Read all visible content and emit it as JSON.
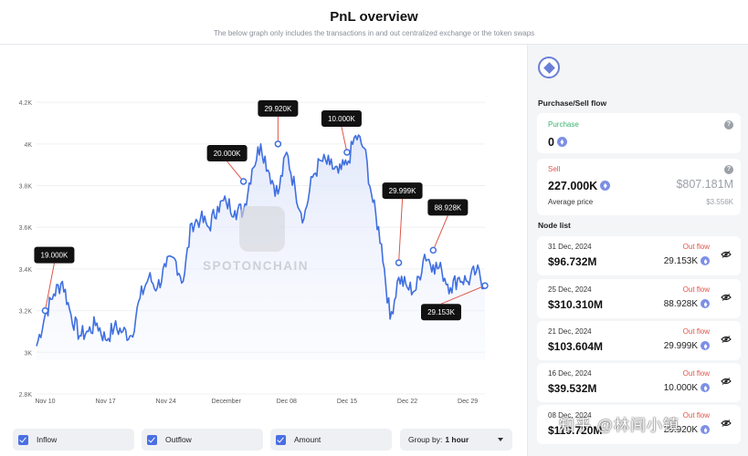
{
  "header": {
    "title": "PnL overview",
    "subtitle": "The below graph only includes the transactions in and out centralized exchange or the token swaps"
  },
  "watermark": {
    "brand": "SPOTONCHAIN",
    "overlay": "知乎 @林间小镇"
  },
  "chart_data": {
    "type": "line",
    "title": "",
    "xlabel": "",
    "ylabel": "",
    "y_tick_labels": [
      "2.8K",
      "3K",
      "3.2K",
      "3.4K",
      "3.6K",
      "3.8K",
      "4K",
      "4.2K"
    ],
    "x_tick_labels": [
      "Nov 10",
      "Nov 17",
      "Nov 24",
      "December",
      "Dec 08",
      "Dec 15",
      "Dec 22",
      "Dec 29"
    ],
    "ylim": [
      2800,
      4240
    ],
    "xlim": [
      "2024-11-09",
      "2024-12-31"
    ],
    "line_color": "#3f6fe0",
    "series": [
      {
        "x": [
          "2024-11-09",
          "2024-11-10",
          "2024-11-11",
          "2024-11-12",
          "2024-11-13",
          "2024-11-14",
          "2024-11-15",
          "2024-11-16",
          "2024-11-17",
          "2024-11-18",
          "2024-11-19",
          "2024-11-20",
          "2024-11-21",
          "2024-11-22",
          "2024-11-23",
          "2024-11-24",
          "2024-11-25",
          "2024-11-26",
          "2024-11-27",
          "2024-11-28",
          "2024-11-29",
          "2024-11-30",
          "2024-12-01",
          "2024-12-02",
          "2024-12-03",
          "2024-12-04",
          "2024-12-05",
          "2024-12-06",
          "2024-12-07",
          "2024-12-08",
          "2024-12-09",
          "2024-12-10",
          "2024-12-11",
          "2024-12-12",
          "2024-12-13",
          "2024-12-14",
          "2024-12-15",
          "2024-12-16",
          "2024-12-17",
          "2024-12-18",
          "2024-12-19",
          "2024-12-20",
          "2024-12-21",
          "2024-12-22",
          "2024-12-23",
          "2024-12-24",
          "2024-12-25",
          "2024-12-26",
          "2024-12-27",
          "2024-12-28",
          "2024-12-29",
          "2024-12-30",
          "2024-12-31"
        ],
        "y": [
          3030,
          3180,
          3280,
          3340,
          3180,
          3080,
          3100,
          3140,
          3060,
          3120,
          3100,
          3080,
          3260,
          3360,
          3310,
          3410,
          3450,
          3340,
          3620,
          3640,
          3600,
          3700,
          3720,
          3680,
          3680,
          3880,
          4000,
          3860,
          3760,
          3960,
          3780,
          3640,
          3840,
          3920,
          3900,
          3860,
          3900,
          4040,
          3980,
          3720,
          3520,
          3160,
          3360,
          3310,
          3300,
          3470,
          3420,
          3390,
          3310,
          3360,
          3340,
          3390,
          3320
        ]
      }
    ],
    "annotations": [
      {
        "label": "19.000K",
        "x": "2024-11-10",
        "y": 3200
      },
      {
        "label": "20.000K",
        "x": "2024-12-03",
        "y": 3820
      },
      {
        "label": "29.920K",
        "x": "2024-12-07",
        "y": 4000
      },
      {
        "label": "10.000K",
        "x": "2024-12-15",
        "y": 3960
      },
      {
        "label": "29.999K",
        "x": "2024-12-21",
        "y": 3430
      },
      {
        "label": "88.928K",
        "x": "2024-12-25",
        "y": 3490
      },
      {
        "label": "29.153K",
        "x": "2024-12-31",
        "y": 3320
      }
    ],
    "grid": true
  },
  "controls": {
    "inflow_label": "Inflow",
    "outflow_label": "Outflow",
    "amount_label": "Amount",
    "group_by_label": "Group by:",
    "group_by_value": "1 hour"
  },
  "sidebar": {
    "flow_title": "Purchase/Sell flow",
    "purchase": {
      "label": "Purchase",
      "value": "0"
    },
    "sell": {
      "label": "Sell",
      "value": "227.000K",
      "usd": "$807.181M",
      "avg_label": "Average price",
      "avg_value": "$3.556K"
    },
    "node_title": "Node list",
    "nodes": [
      {
        "date": "31 Dec, 2024",
        "amount": "$96.732M",
        "flow": "Out flow",
        "value": "29.153K"
      },
      {
        "date": "25 Dec, 2024",
        "amount": "$310.310M",
        "flow": "Out flow",
        "value": "88.928K"
      },
      {
        "date": "21 Dec, 2024",
        "amount": "$103.604M",
        "flow": "Out flow",
        "value": "29.999K"
      },
      {
        "date": "16 Dec, 2024",
        "amount": "$39.532M",
        "flow": "Out flow",
        "value": "10.000K"
      },
      {
        "date": "08 Dec, 2024",
        "amount": "$119.720M",
        "flow": "Out flow",
        "value": "29.920K"
      }
    ]
  },
  "colors": {
    "accent": "#4a6fe3",
    "green": "#3bb36d",
    "red": "#e0554a"
  }
}
